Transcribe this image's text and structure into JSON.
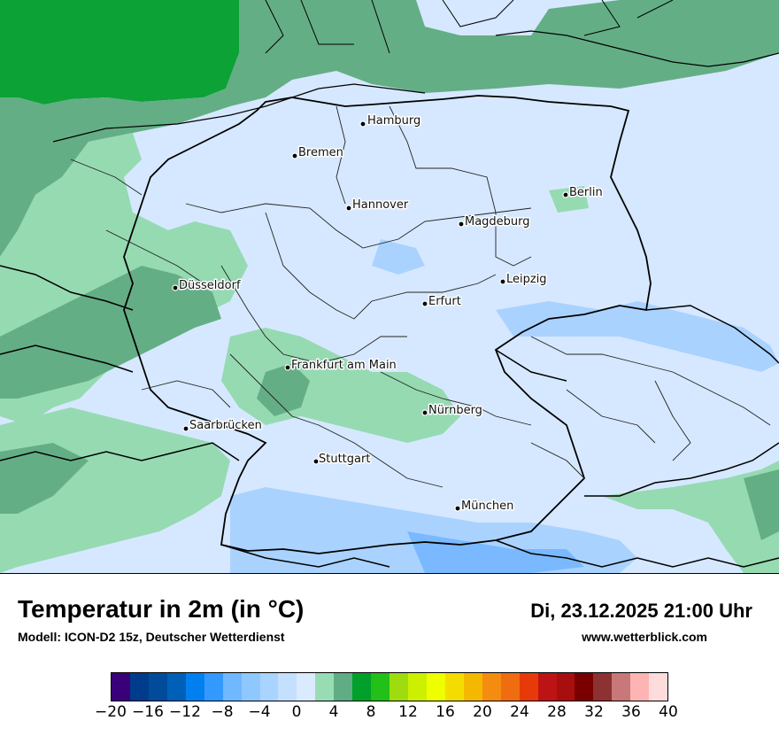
{
  "title": "Temperatur in 2m (in °C)",
  "model": "Modell: ICON-D2 15z, Deutscher Wetterdienst",
  "datetime": "Di, 23.12.2025 21:00 Uhr",
  "website": "www.wetterblick.com",
  "cities": [
    {
      "name": "Hamburg",
      "id": "hamburg"
    },
    {
      "name": "Bremen",
      "id": "bremen"
    },
    {
      "name": "Berlin",
      "id": "berlin"
    },
    {
      "name": "Hannover",
      "id": "hannover"
    },
    {
      "name": "Magdeburg",
      "id": "magdeburg"
    },
    {
      "name": "Düsseldorf",
      "id": "duesseldorf"
    },
    {
      "name": "Leipzig",
      "id": "leipzig"
    },
    {
      "name": "Erfurt",
      "id": "erfurt"
    },
    {
      "name": "Frankfurt am Main",
      "id": "frankfurt"
    },
    {
      "name": "Nürnberg",
      "id": "nuernberg"
    },
    {
      "name": "Saarbrücken",
      "id": "saarbruecken"
    },
    {
      "name": "Stuttgart",
      "id": "stuttgart"
    },
    {
      "name": "München",
      "id": "muenchen"
    }
  ],
  "legend": {
    "colors": [
      "#3a007a",
      "#003c8c",
      "#004c9a",
      "#0060b8",
      "#0080f0",
      "#3399ff",
      "#70b8ff",
      "#8ec8ff",
      "#a8d4ff",
      "#c4e0ff",
      "#daeaff",
      "#98dcb4",
      "#60ac84",
      "#00a02a",
      "#22c018",
      "#9edc10",
      "#ccf000",
      "#f0ff00",
      "#f4dc00",
      "#f4b800",
      "#f48c10",
      "#f06c10",
      "#e83a08",
      "#bc1414",
      "#a80e0e",
      "#7a0000",
      "#8c3232",
      "#c87878",
      "#ffb4b4",
      "#ffdcdc"
    ],
    "ticks": [
      "−20",
      "−16",
      "−12",
      "−8",
      "−4",
      "0",
      "4",
      "8",
      "12",
      "16",
      "20",
      "24",
      "28",
      "32",
      "36",
      "40"
    ]
  }
}
